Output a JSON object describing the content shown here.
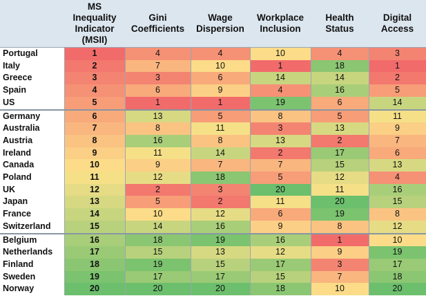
{
  "chart_data": {
    "type": "heatmap",
    "title": "",
    "columns": [
      "MS Inequality Indicator (MSII)",
      "Gini Coefficients",
      "Wage Dispersion",
      "Workplace Inclusion",
      "Health Status",
      "Digital Access"
    ],
    "column_lines": [
      [
        "MS",
        "Inequality",
        "Indicator",
        "(MSII)"
      ],
      [
        "Gini",
        "Coefficients"
      ],
      [
        "Wage",
        "Dispersion"
      ],
      [
        "Workplace",
        "Inclusion"
      ],
      [
        "Health",
        "Status"
      ],
      [
        "Digital",
        "Access"
      ]
    ],
    "value_range": [
      1,
      20
    ],
    "color_scale": {
      "low": "#f26b6b",
      "mid": "#fde28a",
      "high": "#6cbf6c"
    },
    "groups": [
      5,
      10,
      5
    ],
    "rows": [
      {
        "country": "Portugal",
        "values": [
          1,
          4,
          4,
          10,
          4,
          3
        ]
      },
      {
        "country": "Italy",
        "values": [
          2,
          7,
          10,
          1,
          18,
          1
        ]
      },
      {
        "country": "Greece",
        "values": [
          3,
          3,
          6,
          14,
          14,
          2
        ]
      },
      {
        "country": "Spain",
        "values": [
          4,
          6,
          9,
          4,
          16,
          5
        ]
      },
      {
        "country": "US",
        "values": [
          5,
          1,
          1,
          19,
          6,
          14
        ]
      },
      {
        "country": "Germany",
        "values": [
          6,
          13,
          5,
          8,
          5,
          11
        ]
      },
      {
        "country": "Australia",
        "values": [
          7,
          8,
          11,
          3,
          13,
          9
        ]
      },
      {
        "country": "Austria",
        "values": [
          8,
          16,
          8,
          13,
          2,
          7
        ]
      },
      {
        "country": "Ireland",
        "values": [
          9,
          11,
          14,
          2,
          17,
          6
        ]
      },
      {
        "country": "Canada",
        "values": [
          10,
          9,
          7,
          7,
          15,
          13
        ]
      },
      {
        "country": "Poland",
        "values": [
          11,
          12,
          18,
          5,
          12,
          4
        ]
      },
      {
        "country": "UK",
        "values": [
          12,
          2,
          3,
          20,
          11,
          16
        ]
      },
      {
        "country": "Japan",
        "values": [
          13,
          5,
          2,
          11,
          20,
          15
        ]
      },
      {
        "country": "France",
        "values": [
          14,
          10,
          12,
          6,
          19,
          8
        ]
      },
      {
        "country": "Switzerland",
        "values": [
          15,
          14,
          16,
          9,
          8,
          12
        ]
      },
      {
        "country": "Belgium",
        "values": [
          16,
          18,
          19,
          16,
          1,
          10
        ]
      },
      {
        "country": "Netherlands",
        "values": [
          17,
          15,
          13,
          12,
          9,
          19
        ]
      },
      {
        "country": "Finland",
        "values": [
          18,
          19,
          15,
          17,
          3,
          17
        ]
      },
      {
        "country": "Sweden",
        "values": [
          19,
          17,
          17,
          15,
          7,
          18
        ]
      },
      {
        "country": "Norway",
        "values": [
          20,
          20,
          20,
          18,
          10,
          20
        ]
      }
    ]
  }
}
